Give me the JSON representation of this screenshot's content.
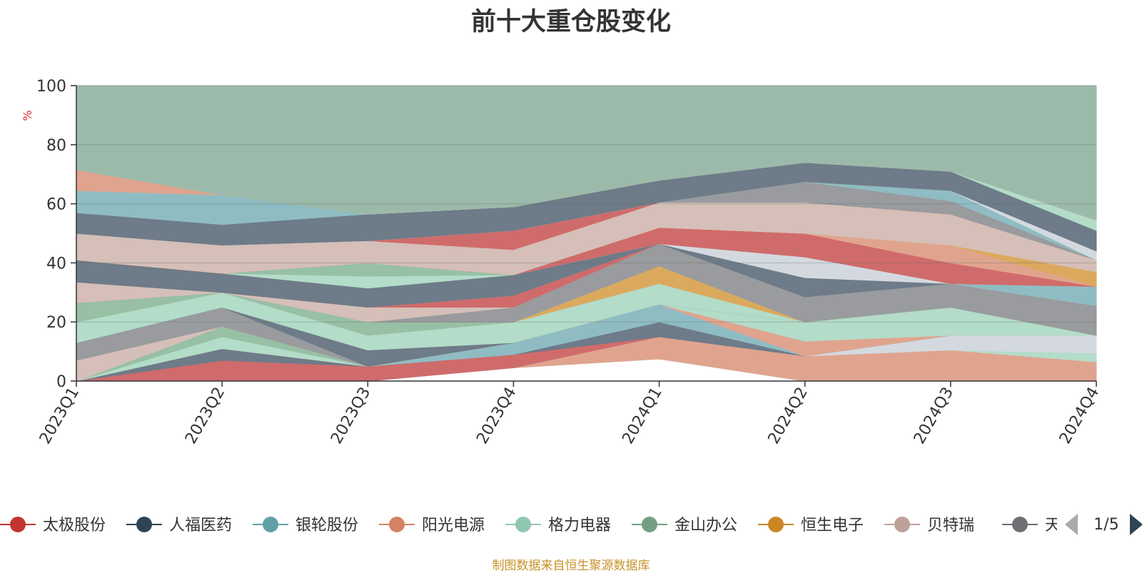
{
  "chart_data": {
    "type": "area",
    "title": "前十大重仓股变化",
    "ylabel": "%",
    "ylim": [
      0,
      100
    ],
    "yticks": [
      0,
      20,
      40,
      60,
      80,
      100
    ],
    "grid": true,
    "legend_position": "bottom",
    "categories": [
      "2023Q1",
      "2023Q2",
      "2023Q3",
      "2023Q4",
      "2024Q1",
      "2024Q2",
      "2024Q3",
      "2024Q4"
    ],
    "layers": [
      {
        "fill": "#8fbcc3",
        "lower": [
          0,
          0,
          0,
          4.5,
          7.5,
          0,
          0,
          0
        ],
        "upper": [
          0,
          0,
          0,
          4.5,
          7.5,
          0,
          0,
          0
        ]
      },
      {
        "fill": "#e0a48e",
        "lower": [
          0,
          0,
          0,
          4.5,
          7.5,
          0,
          0,
          0
        ],
        "upper": [
          0,
          0,
          0,
          4.5,
          15,
          8.5,
          10.5,
          6.5
        ]
      },
      {
        "fill": "#b3dcc9",
        "lower": [
          0,
          0,
          0,
          4.5,
          15,
          8.5,
          10.5,
          6.5
        ],
        "upper": [
          0,
          0,
          0,
          4.5,
          15,
          8.5,
          10.5,
          9.5
        ]
      },
      {
        "fill": "#d4d9e0",
        "lower": [
          0,
          0,
          0,
          4.5,
          15,
          8.5,
          10.5,
          9.5
        ],
        "upper": [
          0,
          0,
          0,
          4.5,
          15,
          8.5,
          15.5,
          15.5
        ]
      },
      {
        "fill": "#d06b6b",
        "lower": [
          0,
          0,
          0,
          4.5,
          15,
          8.5,
          15.5,
          15.5
        ],
        "upper": [
          0,
          7,
          5,
          9,
          15,
          8.5,
          15.5,
          15.5
        ]
      },
      {
        "fill": "#6e7b88",
        "lower": [
          0,
          7,
          5,
          9,
          15,
          8.5,
          15.5,
          15.5
        ],
        "upper": [
          0,
          11,
          5,
          9,
          20,
          8.5,
          15.5,
          15.5
        ]
      },
      {
        "fill": "#8fbcc3",
        "lower": [
          0,
          11,
          5,
          9,
          20,
          8.5,
          15.5,
          15.5
        ],
        "upper": [
          0,
          11,
          5,
          13,
          26,
          8.5,
          15.5,
          15.5
        ]
      },
      {
        "fill": "#e0a48e",
        "lower": [
          0,
          11,
          5,
          13,
          26,
          8.5,
          15.5,
          15.5
        ],
        "upper": [
          0,
          11,
          5,
          13,
          26,
          13.5,
          15.5,
          15.5
        ]
      },
      {
        "fill": "#b3dcc9",
        "lower": [
          0,
          11,
          5,
          13,
          26,
          13.5,
          15.5,
          15.5
        ],
        "upper": [
          0,
          15,
          5,
          13,
          26,
          20,
          25,
          15.5
        ]
      },
      {
        "fill": "#97c0a5",
        "lower": [
          0,
          15,
          5,
          13,
          26,
          20,
          25,
          15.5
        ],
        "upper": [
          0,
          18.5,
          5,
          13,
          26,
          20,
          25,
          15.5
        ]
      },
      {
        "fill": "#dba95e",
        "lower": [
          0,
          18.5,
          5,
          13,
          26,
          20,
          25,
          15.5
        ],
        "upper": [
          0,
          18.5,
          5,
          13,
          26,
          20,
          25,
          15.5
        ]
      },
      {
        "fill": "#d5bfb8",
        "lower": [
          0,
          18.5,
          5,
          13,
          26,
          20,
          25,
          15.5
        ],
        "upper": [
          7,
          18.5,
          5,
          13,
          26,
          20,
          25,
          15.5
        ]
      },
      {
        "fill": "#999b9e",
        "lower": [
          7,
          18.5,
          5,
          13,
          26,
          20,
          25,
          15.5
        ],
        "upper": [
          13,
          25,
          5,
          13,
          26,
          20,
          25,
          15.5
        ]
      },
      {
        "fill": "#6e7b88",
        "lower": [
          13,
          25,
          5,
          13,
          26,
          20,
          25,
          15.5
        ],
        "upper": [
          13,
          25,
          10.5,
          13,
          26,
          20,
          25,
          15.5
        ]
      },
      {
        "fill": "#b3dcc9",
        "lower": [
          13,
          25,
          10.5,
          13,
          26,
          20,
          25,
          15.5
        ],
        "upper": [
          20,
          30,
          15.5,
          20,
          33,
          20,
          25,
          15.5
        ]
      },
      {
        "fill": "#dba95e",
        "lower": [
          20,
          30,
          15.5,
          20,
          33,
          20,
          25,
          15.5
        ],
        "upper": [
          20,
          30,
          15.5,
          20,
          39,
          20,
          25,
          15.5
        ]
      },
      {
        "fill": "#97c0a5",
        "lower": [
          20,
          30,
          15.5,
          20,
          39,
          20,
          25,
          15.5
        ],
        "upper": [
          26.5,
          30,
          20,
          20,
          39,
          20,
          25,
          15.5
        ]
      },
      {
        "fill": "#999b9e",
        "lower": [
          26.5,
          30,
          20,
          20,
          39,
          20,
          25,
          15.5
        ],
        "upper": [
          26.5,
          30,
          20,
          25,
          46.5,
          28.5,
          33,
          25.5
        ]
      },
      {
        "fill": "#d5bfb8",
        "lower": [
          26.5,
          30,
          20,
          25,
          46.5,
          28.5,
          33,
          25.5
        ],
        "upper": [
          33.5,
          30,
          25,
          25,
          46.5,
          28.5,
          33,
          25.5
        ]
      },
      {
        "fill": "#d06b6b",
        "lower": [
          33.5,
          30,
          25,
          25,
          46.5,
          28.5,
          33,
          25.5
        ],
        "upper": [
          33.5,
          30,
          25,
          29,
          46.5,
          28.5,
          33,
          25.5
        ]
      },
      {
        "fill": "#8fbcc3",
        "lower": [
          33.5,
          30,
          25,
          29,
          46.5,
          28.5,
          33,
          25.5
        ],
        "upper": [
          33.5,
          30,
          25,
          29,
          46.5,
          28.5,
          33,
          32
        ]
      },
      {
        "fill": "#6e7b88",
        "lower": [
          33.5,
          30,
          25,
          29,
          46.5,
          28.5,
          33,
          32
        ],
        "upper": [
          41,
          36.5,
          31.5,
          36,
          46.5,
          35,
          33,
          32
        ]
      },
      {
        "fill": "#d4d9e0",
        "lower": [
          41,
          36.5,
          31.5,
          36,
          46.5,
          35,
          33,
          32
        ],
        "upper": [
          41,
          36.5,
          31.5,
          36,
          46.5,
          42,
          33,
          32
        ]
      },
      {
        "fill": "#b3dcc9",
        "lower": [
          41,
          36.5,
          31.5,
          36,
          46.5,
          42,
          33,
          32
        ],
        "upper": [
          41,
          36.5,
          35.5,
          36,
          46.5,
          42,
          33,
          32
        ]
      },
      {
        "fill": "#97c0a5",
        "lower": [
          41,
          36.5,
          35.5,
          36,
          46.5,
          42,
          33,
          32
        ],
        "upper": [
          41,
          36.5,
          40,
          36,
          46.5,
          42,
          33,
          32
        ]
      },
      {
        "fill": "#d06b6b",
        "lower": [
          41,
          36.5,
          40,
          36,
          46.5,
          42,
          33,
          32
        ],
        "upper": [
          41,
          36.5,
          40,
          36,
          52,
          50,
          40,
          32
        ]
      },
      {
        "fill": "#e0a48e",
        "lower": [
          41,
          36.5,
          40,
          36,
          52,
          50,
          40,
          32
        ],
        "upper": [
          41,
          36.5,
          40,
          36,
          52,
          50,
          46,
          32
        ]
      },
      {
        "fill": "#dba95e",
        "lower": [
          41,
          36.5,
          40,
          36,
          52,
          50,
          46,
          32
        ],
        "upper": [
          41,
          36.5,
          40,
          36,
          52,
          50,
          46,
          37
        ]
      },
      {
        "fill": "#d5bfb8",
        "lower": [
          41,
          36.5,
          40,
          36,
          52,
          50,
          46,
          37
        ],
        "upper": [
          50,
          46,
          47.5,
          44.5,
          60.5,
          60.5,
          56.5,
          41
        ]
      },
      {
        "fill": "#d06b6b",
        "lower": [
          50,
          46,
          47.5,
          44.5,
          60.5,
          60.5,
          56.5,
          41
        ],
        "upper": [
          50,
          46,
          47.5,
          51,
          60.5,
          60.5,
          56.5,
          41
        ]
      },
      {
        "fill": "#999b9e",
        "lower": [
          50,
          46,
          47.5,
          51,
          60.5,
          60.5,
          56.5,
          41
        ],
        "upper": [
          50,
          46,
          47.5,
          51,
          60.5,
          67.5,
          61,
          41
        ]
      },
      {
        "fill": "#8fbcc3",
        "lower": [
          50,
          46,
          47.5,
          51,
          60.5,
          67.5,
          61,
          41
        ],
        "upper": [
          50,
          46,
          47.5,
          51,
          60.5,
          67.5,
          64.5,
          41
        ]
      },
      {
        "fill": "#d4d9e0",
        "lower": [
          50,
          46,
          47.5,
          51,
          60.5,
          67.5,
          64.5,
          41
        ],
        "upper": [
          50,
          46,
          47.5,
          51,
          60.5,
          67.5,
          64.5,
          44
        ]
      },
      {
        "fill": "#6e7b88",
        "lower": [
          50,
          46,
          47.5,
          51,
          60.5,
          67.5,
          64.5,
          44
        ],
        "upper": [
          57,
          53,
          56.5,
          59,
          68,
          74,
          71,
          51
        ]
      },
      {
        "fill": "#8fbcc3",
        "lower": [
          57,
          53,
          56.5,
          59,
          68,
          74,
          71,
          51
        ],
        "upper": [
          64.5,
          63,
          56.5,
          59,
          68,
          74,
          71,
          51
        ]
      },
      {
        "fill": "#b3dcc9",
        "lower": [
          64.5,
          63,
          56.5,
          59,
          68,
          74,
          71,
          51
        ],
        "upper": [
          64.5,
          63,
          56.5,
          59,
          68,
          74,
          71,
          54.5
        ]
      },
      {
        "fill": "#e0a48e",
        "lower": [
          64.5,
          63,
          56.5,
          59,
          68,
          74,
          71,
          54.5
        ],
        "upper": [
          71.5,
          63,
          56.5,
          59,
          68,
          74,
          71,
          54.5
        ]
      },
      {
        "fill": "#9cbaaa",
        "lower": [
          71.5,
          63,
          56.5,
          59,
          68,
          74,
          71,
          54.5
        ],
        "upper": [
          100,
          100,
          100,
          100,
          100,
          100,
          100,
          100
        ]
      }
    ],
    "legend": [
      {
        "name": "太极股份",
        "color": "#c23531"
      },
      {
        "name": "人福医药",
        "color": "#2f4554"
      },
      {
        "name": "银轮股份",
        "color": "#61a0a8"
      },
      {
        "name": "阳光电源",
        "color": "#d48265"
      },
      {
        "name": "格力电器",
        "color": "#91c7ae"
      },
      {
        "name": "金山办公",
        "color": "#749f83"
      },
      {
        "name": "恒生电子",
        "color": "#ca8622"
      },
      {
        "name": "贝特瑞",
        "color": "#bda29a"
      },
      {
        "name": "天合",
        "color": "#6e7074"
      }
    ],
    "legend_page": "1/5"
  },
  "source_note": "制图数据来自恒生聚源数据库"
}
